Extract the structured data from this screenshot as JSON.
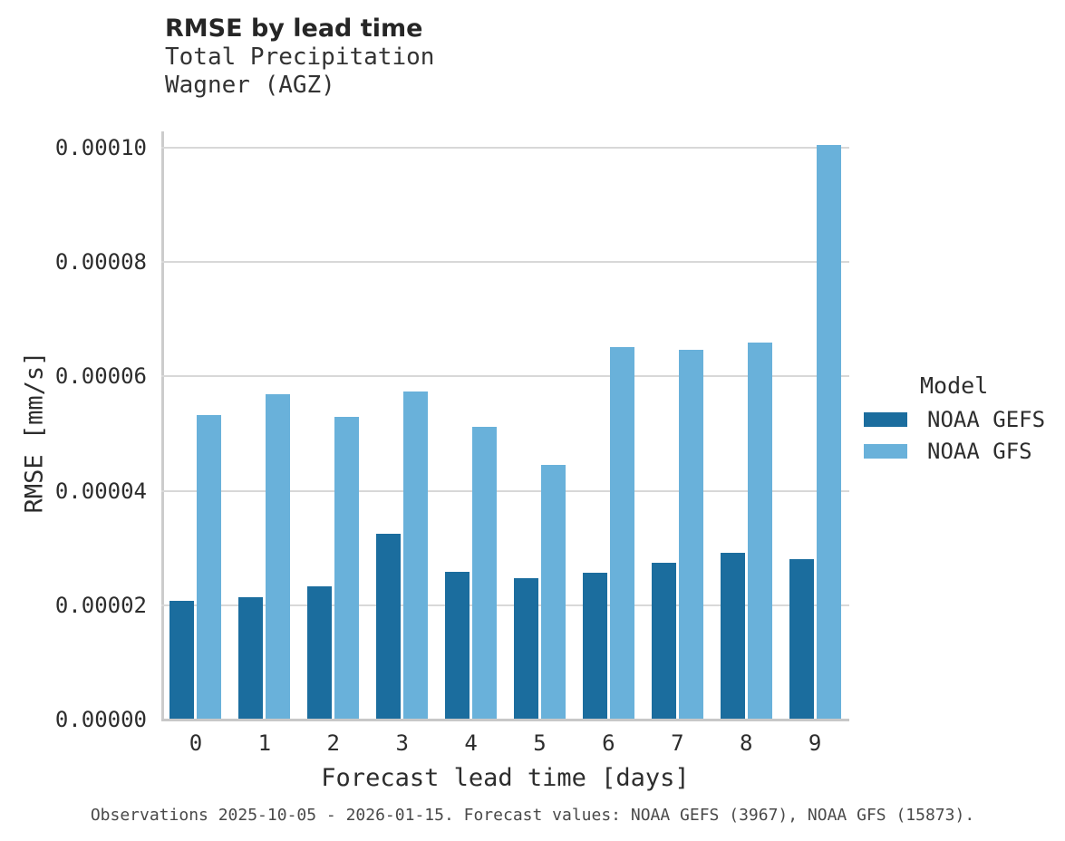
{
  "caption": "Observations 2025-10-05 - 2026-01-15. Forecast values: NOAA GEFS (3967), NOAA GFS (15873).",
  "chart_data": {
    "type": "bar",
    "title": "RMSE by lead time",
    "subtitle1": "Total Precipitation",
    "subtitle2": "Wagner (AGZ)",
    "xlabel": "Forecast lead time [days]",
    "ylabel": "RMSE [mm/s]",
    "categories": [
      "0",
      "1",
      "2",
      "3",
      "4",
      "5",
      "6",
      "7",
      "8",
      "9"
    ],
    "series": [
      {
        "name": "NOAA GEFS",
        "color": "#1b6d9e",
        "values": [
          2.08e-05,
          2.14e-05,
          2.33e-05,
          3.25e-05,
          2.58e-05,
          2.48e-05,
          2.57e-05,
          2.74e-05,
          2.92e-05,
          2.81e-05
        ]
      },
      {
        "name": "NOAA GFS",
        "color": "#69b1da",
        "values": [
          5.32e-05,
          5.69e-05,
          5.3e-05,
          5.73e-05,
          5.12e-05,
          4.45e-05,
          6.52e-05,
          6.46e-05,
          6.59e-05,
          0.0001005
        ]
      }
    ],
    "ylim": [
      0,
      0.00010285
    ],
    "yticks": [
      0,
      2e-05,
      4e-05,
      6e-05,
      8e-05,
      0.0001
    ],
    "ytick_labels": [
      "0.00000",
      "0.00002",
      "0.00004",
      "0.00006",
      "0.00008",
      "0.00010"
    ],
    "legend": {
      "title": "Model",
      "position": "right"
    },
    "grid": "horizontal",
    "colors": {
      "grid": "#d8d8d8",
      "spine": "#c8c8c8"
    }
  }
}
